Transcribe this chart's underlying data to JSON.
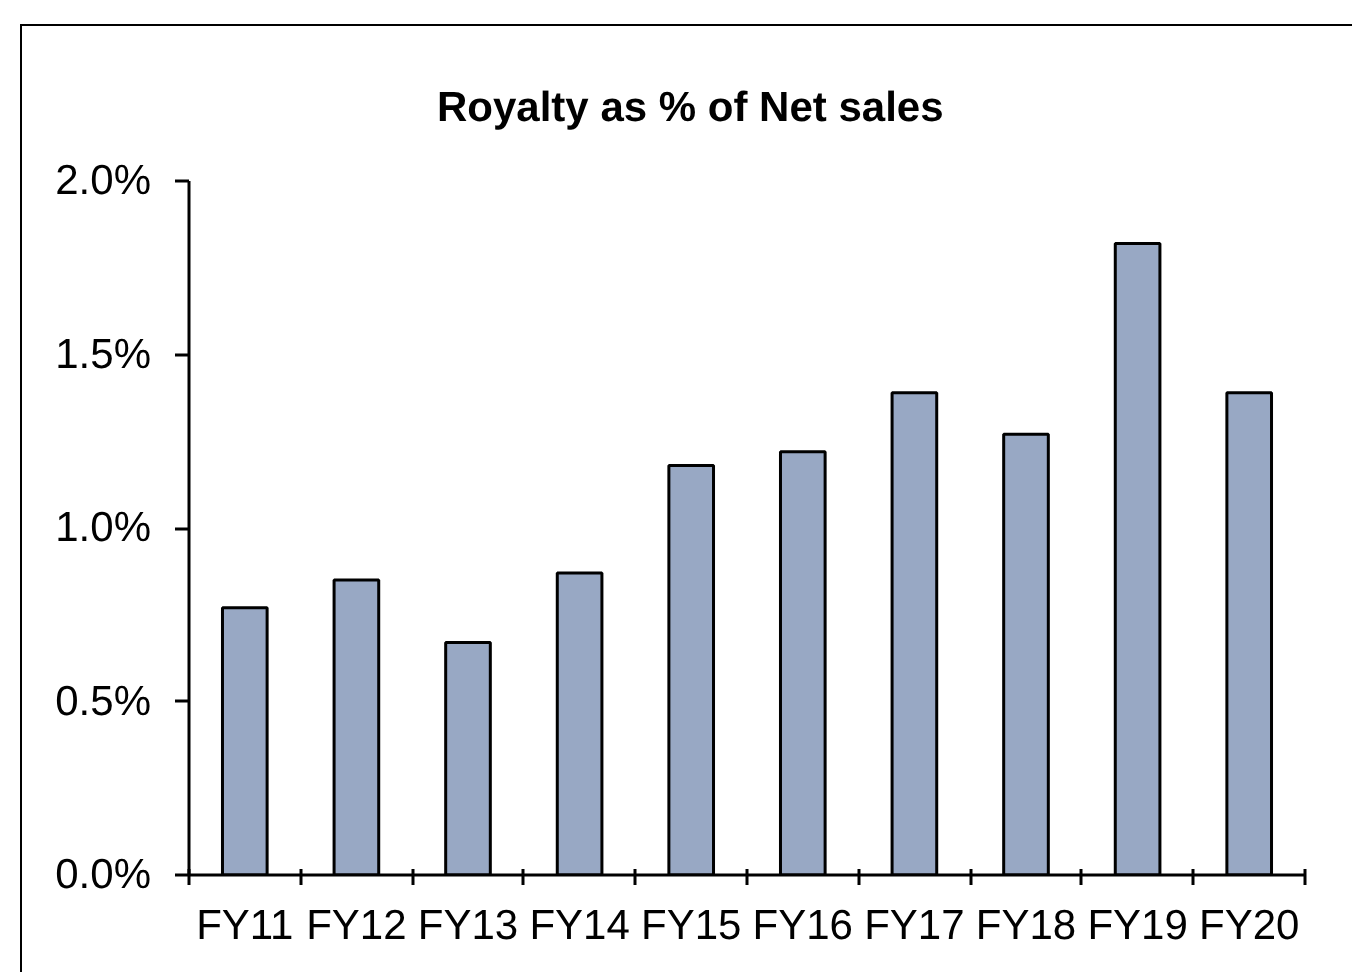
{
  "chart_data": {
    "type": "bar",
    "title": "Royalty as % of Net sales",
    "categories": [
      "FY11",
      "FY12",
      "FY13",
      "FY14",
      "FY15",
      "FY16",
      "FY17",
      "FY18",
      "FY19",
      "FY20"
    ],
    "values": [
      0.77,
      0.85,
      0.67,
      0.87,
      1.18,
      1.22,
      1.39,
      1.27,
      1.82,
      1.39
    ],
    "color": "#98a8c4",
    "ylim": [
      0,
      2.0
    ],
    "yticks": [
      {
        "value": 0,
        "label": "0.0%"
      },
      {
        "value": 0.5,
        "label": "0.5%"
      },
      {
        "value": 1.0,
        "label": "1.0%"
      },
      {
        "value": 1.5,
        "label": "1.5%"
      },
      {
        "value": 2.0,
        "label": "2.0%"
      }
    ],
    "grid": false
  }
}
